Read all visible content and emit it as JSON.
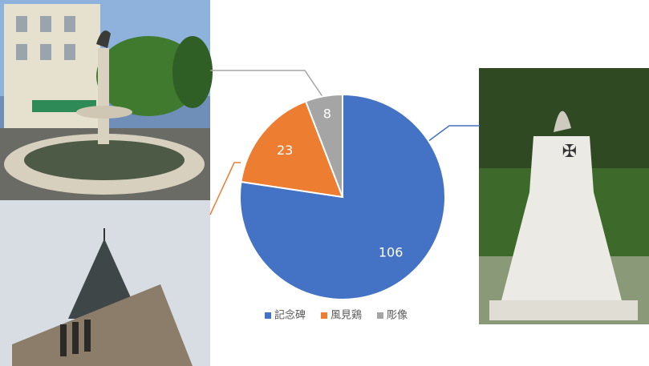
{
  "chart_data": {
    "type": "pie",
    "categories": [
      "記念碑",
      "風見鶏",
      "彫像"
    ],
    "values": [
      106,
      23,
      8
    ],
    "colors": [
      "#4472c4",
      "#ed7d31",
      "#a5a5a5"
    ],
    "legend": "bottom"
  }
}
